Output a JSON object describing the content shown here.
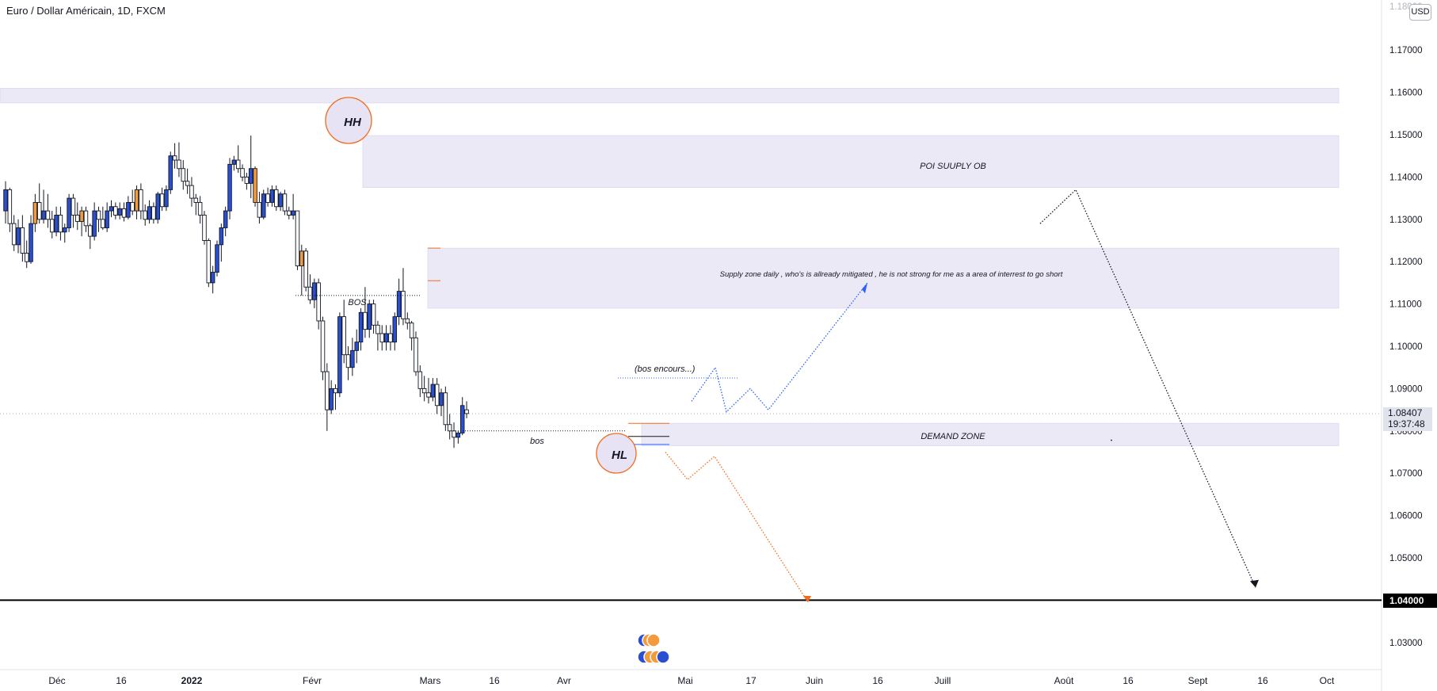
{
  "header": {
    "title": "Euro / Dollar Américain, 1D, FXCM",
    "currency_badge": "USD"
  },
  "price_scale": {
    "last_price": "1.08407",
    "countdown": "19:37:48",
    "level_label": "1.04000"
  },
  "colors": {
    "up_candle": "#2a4fd0",
    "down_candle": "#ffffff",
    "orange_candle": "#f39a3c",
    "zone_fill": "#ece9f7",
    "circle_stroke": "#f26b1d",
    "circle_fill": "#e7e3f4",
    "blue_path": "#2962ff",
    "orange_path": "#f26b1d",
    "dark_path": "#131722",
    "level_line": "#000000"
  },
  "annotations": {
    "hh": "HH",
    "hl": "HL",
    "bos_upper": "BOS",
    "bos_lower": "bos",
    "poi": "POI SUUPLY OB",
    "supply_note": "Supply zone daily , who's is allready mitigated , he is not strong for me as a area of interrest to go short",
    "bos_encours": "(bos encours...)",
    "demand": "DEMAND ZONE"
  },
  "chart_data": {
    "type": "candlestick",
    "title": "Euro / Dollar Américain, 1D, FXCM",
    "symbol_currency": "USD",
    "x_tick_labels": [
      "Déc",
      "16",
      "2022",
      "Févr",
      "Mars",
      "16",
      "Avr",
      "Mai",
      "17",
      "Juin",
      "16",
      "Juill",
      "Août",
      "16",
      "Sept",
      "16",
      "Oct"
    ],
    "y_tick_labels": [
      "1.17000",
      "1.16000",
      "1.15000",
      "1.14000",
      "1.13000",
      "1.12000",
      "1.11000",
      "1.10000",
      "1.09000",
      "1.08000",
      "1.07000",
      "1.06000",
      "1.05000",
      "1.04000",
      "1.03000"
    ],
    "ylim": [
      1.0225,
      1.1855
    ],
    "last_price": 1.08407,
    "horizontal_level": 1.04,
    "zones": [
      {
        "name": "",
        "from": 1.1575,
        "to": 1.161
      },
      {
        "name": "POI SUUPLY OB",
        "from": 1.1375,
        "to": 1.1498
      },
      {
        "name": "Supply zone daily",
        "from": 1.109,
        "to": 1.1232
      },
      {
        "name": "DEMAND ZONE",
        "from": 1.0765,
        "to": 1.0818
      }
    ],
    "candles": [
      {
        "o": 1.132,
        "h": 1.139,
        "l": 1.129,
        "c": 1.137
      },
      {
        "o": 1.137,
        "h": 1.1375,
        "l": 1.127,
        "c": 1.129
      },
      {
        "o": 1.129,
        "h": 1.131,
        "l": 1.1225,
        "c": 1.124
      },
      {
        "o": 1.124,
        "h": 1.13,
        "l": 1.122,
        "c": 1.128
      },
      {
        "o": 1.128,
        "h": 1.131,
        "l": 1.12,
        "c": 1.122
      },
      {
        "o": 1.122,
        "h": 1.125,
        "l": 1.1185,
        "c": 1.12
      },
      {
        "o": 1.12,
        "h": 1.131,
        "l": 1.1195,
        "c": 1.129
      },
      {
        "o": 1.129,
        "h": 1.136,
        "l": 1.127,
        "c": 1.134
      },
      {
        "o": 1.134,
        "h": 1.1385,
        "l": 1.129,
        "c": 1.13
      },
      {
        "o": 1.13,
        "h": 1.137,
        "l": 1.129,
        "c": 1.132
      },
      {
        "o": 1.132,
        "h": 1.136,
        "l": 1.128,
        "c": 1.13
      },
      {
        "o": 1.13,
        "h": 1.132,
        "l": 1.1255,
        "c": 1.127
      },
      {
        "o": 1.127,
        "h": 1.133,
        "l": 1.126,
        "c": 1.131
      },
      {
        "o": 1.131,
        "h": 1.133,
        "l": 1.125,
        "c": 1.127
      },
      {
        "o": 1.127,
        "h": 1.129,
        "l": 1.1245,
        "c": 1.128
      },
      {
        "o": 1.128,
        "h": 1.136,
        "l": 1.127,
        "c": 1.135
      },
      {
        "o": 1.135,
        "h": 1.136,
        "l": 1.128,
        "c": 1.131
      },
      {
        "o": 1.131,
        "h": 1.134,
        "l": 1.1275,
        "c": 1.1295
      },
      {
        "o": 1.1295,
        "h": 1.133,
        "l": 1.126,
        "c": 1.132
      },
      {
        "o": 1.132,
        "h": 1.133,
        "l": 1.127,
        "c": 1.1285
      },
      {
        "o": 1.1285,
        "h": 1.129,
        "l": 1.123,
        "c": 1.126
      },
      {
        "o": 1.126,
        "h": 1.134,
        "l": 1.125,
        "c": 1.132
      },
      {
        "o": 1.132,
        "h": 1.133,
        "l": 1.127,
        "c": 1.13
      },
      {
        "o": 1.13,
        "h": 1.133,
        "l": 1.1275,
        "c": 1.128
      },
      {
        "o": 1.128,
        "h": 1.134,
        "l": 1.127,
        "c": 1.132
      },
      {
        "o": 1.132,
        "h": 1.1345,
        "l": 1.1305,
        "c": 1.133
      },
      {
        "o": 1.133,
        "h": 1.134,
        "l": 1.13,
        "c": 1.131
      },
      {
        "o": 1.131,
        "h": 1.134,
        "l": 1.13,
        "c": 1.1325
      },
      {
        "o": 1.1325,
        "h": 1.134,
        "l": 1.1295,
        "c": 1.1305
      },
      {
        "o": 1.1305,
        "h": 1.1355,
        "l": 1.13,
        "c": 1.134
      },
      {
        "o": 1.134,
        "h": 1.137,
        "l": 1.131,
        "c": 1.132
      },
      {
        "o": 1.132,
        "h": 1.138,
        "l": 1.13,
        "c": 1.137
      },
      {
        "o": 1.137,
        "h": 1.1385,
        "l": 1.13,
        "c": 1.132
      },
      {
        "o": 1.132,
        "h": 1.1335,
        "l": 1.1285,
        "c": 1.13
      },
      {
        "o": 1.13,
        "h": 1.1345,
        "l": 1.129,
        "c": 1.133
      },
      {
        "o": 1.133,
        "h": 1.134,
        "l": 1.129,
        "c": 1.13
      },
      {
        "o": 1.13,
        "h": 1.1365,
        "l": 1.129,
        "c": 1.136
      },
      {
        "o": 1.136,
        "h": 1.1375,
        "l": 1.132,
        "c": 1.133
      },
      {
        "o": 1.133,
        "h": 1.138,
        "l": 1.132,
        "c": 1.137
      },
      {
        "o": 1.137,
        "h": 1.146,
        "l": 1.136,
        "c": 1.145
      },
      {
        "o": 1.145,
        "h": 1.148,
        "l": 1.142,
        "c": 1.144
      },
      {
        "o": 1.144,
        "h": 1.1482,
        "l": 1.14,
        "c": 1.142
      },
      {
        "o": 1.142,
        "h": 1.144,
        "l": 1.137,
        "c": 1.139
      },
      {
        "o": 1.139,
        "h": 1.142,
        "l": 1.136,
        "c": 1.138
      },
      {
        "o": 1.138,
        "h": 1.14,
        "l": 1.133,
        "c": 1.135
      },
      {
        "o": 1.135,
        "h": 1.136,
        "l": 1.131,
        "c": 1.134
      },
      {
        "o": 1.134,
        "h": 1.1355,
        "l": 1.129,
        "c": 1.131
      },
      {
        "o": 1.131,
        "h": 1.132,
        "l": 1.124,
        "c": 1.125
      },
      {
        "o": 1.125,
        "h": 1.1255,
        "l": 1.114,
        "c": 1.115
      },
      {
        "o": 1.115,
        "h": 1.119,
        "l": 1.1125,
        "c": 1.1175
      },
      {
        "o": 1.1175,
        "h": 1.125,
        "l": 1.1165,
        "c": 1.124
      },
      {
        "o": 1.124,
        "h": 1.129,
        "l": 1.12,
        "c": 1.128
      },
      {
        "o": 1.128,
        "h": 1.133,
        "l": 1.126,
        "c": 1.132
      },
      {
        "o": 1.132,
        "h": 1.1445,
        "l": 1.13,
        "c": 1.143
      },
      {
        "o": 1.143,
        "h": 1.145,
        "l": 1.1415,
        "c": 1.144
      },
      {
        "o": 1.144,
        "h": 1.1475,
        "l": 1.141,
        "c": 1.142
      },
      {
        "o": 1.142,
        "h": 1.143,
        "l": 1.139,
        "c": 1.14
      },
      {
        "o": 1.14,
        "h": 1.141,
        "l": 1.137,
        "c": 1.1385
      },
      {
        "o": 1.1385,
        "h": 1.1498,
        "l": 1.135,
        "c": 1.142
      },
      {
        "o": 1.142,
        "h": 1.1425,
        "l": 1.133,
        "c": 1.134
      },
      {
        "o": 1.134,
        "h": 1.1365,
        "l": 1.129,
        "c": 1.1305
      },
      {
        "o": 1.1305,
        "h": 1.137,
        "l": 1.13,
        "c": 1.136
      },
      {
        "o": 1.136,
        "h": 1.1375,
        "l": 1.133,
        "c": 1.134
      },
      {
        "o": 1.134,
        "h": 1.138,
        "l": 1.133,
        "c": 1.137
      },
      {
        "o": 1.137,
        "h": 1.138,
        "l": 1.132,
        "c": 1.133
      },
      {
        "o": 1.133,
        "h": 1.1365,
        "l": 1.132,
        "c": 1.136
      },
      {
        "o": 1.136,
        "h": 1.137,
        "l": 1.131,
        "c": 1.132
      },
      {
        "o": 1.132,
        "h": 1.133,
        "l": 1.13,
        "c": 1.131
      },
      {
        "o": 1.131,
        "h": 1.136,
        "l": 1.13,
        "c": 1.132
      },
      {
        "o": 1.132,
        "h": 1.132,
        "l": 1.118,
        "c": 1.119
      },
      {
        "o": 1.119,
        "h": 1.124,
        "l": 1.112,
        "c": 1.1225
      },
      {
        "o": 1.1225,
        "h": 1.1232,
        "l": 1.113,
        "c": 1.114
      },
      {
        "o": 1.114,
        "h": 1.117,
        "l": 1.11,
        "c": 1.111
      },
      {
        "o": 1.111,
        "h": 1.116,
        "l": 1.109,
        "c": 1.115
      },
      {
        "o": 1.115,
        "h": 1.116,
        "l": 1.104,
        "c": 1.106
      },
      {
        "o": 1.106,
        "h": 1.107,
        "l": 1.092,
        "c": 1.094
      },
      {
        "o": 1.094,
        "h": 1.096,
        "l": 1.08,
        "c": 1.085
      },
      {
        "o": 1.085,
        "h": 1.092,
        "l": 1.084,
        "c": 1.09
      },
      {
        "o": 1.09,
        "h": 1.091,
        "l": 1.085,
        "c": 1.089
      },
      {
        "o": 1.089,
        "h": 1.108,
        "l": 1.088,
        "c": 1.107
      },
      {
        "o": 1.107,
        "h": 1.111,
        "l": 1.096,
        "c": 1.098
      },
      {
        "o": 1.098,
        "h": 1.1,
        "l": 1.092,
        "c": 1.095
      },
      {
        "o": 1.095,
        "h": 1.102,
        "l": 1.093,
        "c": 1.099
      },
      {
        "o": 1.099,
        "h": 1.104,
        "l": 1.096,
        "c": 1.101
      },
      {
        "o": 1.101,
        "h": 1.109,
        "l": 1.099,
        "c": 1.108
      },
      {
        "o": 1.108,
        "h": 1.114,
        "l": 1.102,
        "c": 1.104
      },
      {
        "o": 1.104,
        "h": 1.111,
        "l": 1.102,
        "c": 1.11
      },
      {
        "o": 1.11,
        "h": 1.111,
        "l": 1.103,
        "c": 1.105
      },
      {
        "o": 1.105,
        "h": 1.106,
        "l": 1.099,
        "c": 1.103
      },
      {
        "o": 1.103,
        "h": 1.105,
        "l": 1.099,
        "c": 1.101
      },
      {
        "o": 1.101,
        "h": 1.105,
        "l": 1.099,
        "c": 1.103
      },
      {
        "o": 1.103,
        "h": 1.105,
        "l": 1.099,
        "c": 1.101
      },
      {
        "o": 1.101,
        "h": 1.108,
        "l": 1.099,
        "c": 1.107
      },
      {
        "o": 1.107,
        "h": 1.116,
        "l": 1.105,
        "c": 1.113
      },
      {
        "o": 1.113,
        "h": 1.1185,
        "l": 1.105,
        "c": 1.1065
      },
      {
        "o": 1.1065,
        "h": 1.108,
        "l": 1.104,
        "c": 1.1055
      },
      {
        "o": 1.1055,
        "h": 1.106,
        "l": 1.099,
        "c": 1.102
      },
      {
        "o": 1.102,
        "h": 1.1035,
        "l": 1.093,
        "c": 1.094
      },
      {
        "o": 1.094,
        "h": 1.0955,
        "l": 1.088,
        "c": 1.09
      },
      {
        "o": 1.09,
        "h": 1.093,
        "l": 1.087,
        "c": 1.089
      },
      {
        "o": 1.089,
        "h": 1.0925,
        "l": 1.0865,
        "c": 1.088
      },
      {
        "o": 1.088,
        "h": 1.0925,
        "l": 1.087,
        "c": 1.091
      },
      {
        "o": 1.091,
        "h": 1.0925,
        "l": 1.084,
        "c": 1.086
      },
      {
        "o": 1.086,
        "h": 1.09,
        "l": 1.0835,
        "c": 1.089
      },
      {
        "o": 1.089,
        "h": 1.0905,
        "l": 1.08,
        "c": 1.0815
      },
      {
        "o": 1.0815,
        "h": 1.084,
        "l": 1.078,
        "c": 1.08
      },
      {
        "o": 1.08,
        "h": 1.082,
        "l": 1.076,
        "c": 1.0785
      },
      {
        "o": 1.0785,
        "h": 1.08,
        "l": 1.077,
        "c": 1.0795
      },
      {
        "o": 1.0795,
        "h": 1.088,
        "l": 1.079,
        "c": 1.086
      },
      {
        "o": 1.085,
        "h": 1.087,
        "l": 1.083,
        "c": 1.0841
      }
    ]
  }
}
